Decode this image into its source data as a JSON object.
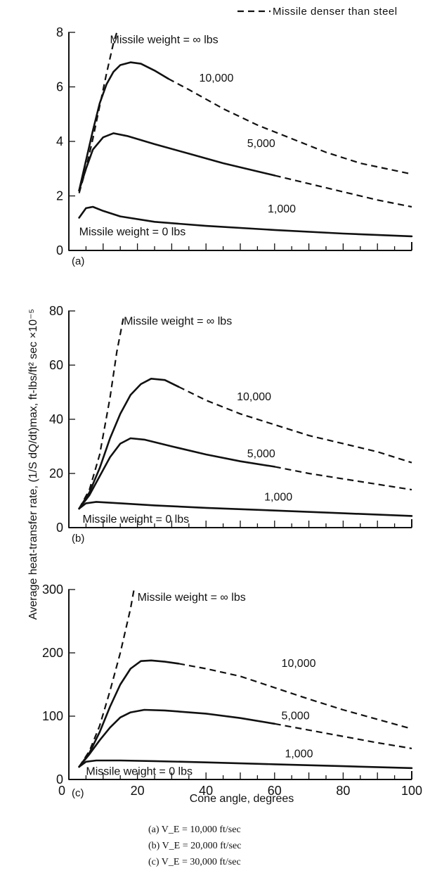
{
  "legend": {
    "dashed_label": "Missile denser than steel"
  },
  "ylabel": "Average heat-transfer rate, (1/S dQ/dt)max, ft-lbs/ft² sec ×10⁻⁵",
  "xlabel": "Cone angle, degrees",
  "captions": [
    "(a)  V_E = 10,000 ft/sec",
    "(b)  V_E = 20,000 ft/sec",
    "(c)  V_E = 30,000 ft/sec"
  ],
  "chart_data": [
    {
      "type": "line",
      "panel": "(a)",
      "xlim": [
        0,
        100
      ],
      "ylim": [
        0,
        8
      ],
      "yticks": [
        "0",
        "2",
        "4",
        "6",
        "8"
      ],
      "xticks": [],
      "series": [
        {
          "name": "Missile weight = ∞ lbs",
          "label_x": 12,
          "label_y": 7.6,
          "segments": [
            {
              "style": "dashed",
              "points": [
                [
                  3,
                  2.1
                ],
                [
                  5,
                  3.0
                ],
                [
                  7,
                  4.1
                ],
                [
                  9,
                  5.3
                ],
                [
                  11,
                  6.5
                ],
                [
                  13,
                  7.6
                ],
                [
                  14,
                  8.0
                ]
              ]
            }
          ]
        },
        {
          "name": "10,000",
          "label_x": 38,
          "label_y": 6.2,
          "segments": [
            {
              "style": "solid",
              "points": [
                [
                  3,
                  2.2
                ],
                [
                  5,
                  3.3
                ],
                [
                  7,
                  4.4
                ],
                [
                  9,
                  5.4
                ],
                [
                  11,
                  6.1
                ],
                [
                  13,
                  6.55
                ],
                [
                  15,
                  6.8
                ],
                [
                  18,
                  6.9
                ],
                [
                  21,
                  6.85
                ],
                [
                  25,
                  6.6
                ],
                [
                  29,
                  6.3
                ]
              ]
            },
            {
              "style": "dashed",
              "points": [
                [
                  29,
                  6.3
                ],
                [
                  35,
                  5.9
                ],
                [
                  45,
                  5.2
                ],
                [
                  55,
                  4.6
                ],
                [
                  65,
                  4.1
                ],
                [
                  75,
                  3.6
                ],
                [
                  85,
                  3.2
                ],
                [
                  100,
                  2.8
                ]
              ]
            }
          ]
        },
        {
          "name": "5,000",
          "label_x": 52,
          "label_y": 3.8,
          "segments": [
            {
              "style": "solid",
              "points": [
                [
                  3,
                  2.2
                ],
                [
                  5,
                  3.0
                ],
                [
                  7,
                  3.7
                ],
                [
                  10,
                  4.15
                ],
                [
                  13,
                  4.3
                ],
                [
                  17,
                  4.2
                ],
                [
                  25,
                  3.9
                ],
                [
                  35,
                  3.55
                ],
                [
                  45,
                  3.2
                ],
                [
                  55,
                  2.9
                ],
                [
                  60,
                  2.75
                ]
              ]
            },
            {
              "style": "dashed",
              "points": [
                [
                  60,
                  2.75
                ],
                [
                  70,
                  2.45
                ],
                [
                  80,
                  2.15
                ],
                [
                  90,
                  1.85
                ],
                [
                  100,
                  1.6
                ]
              ]
            }
          ]
        },
        {
          "name": "1,000",
          "label_x": 58,
          "label_y": 1.4,
          "segments": [
            {
              "style": "solid",
              "points": [
                [
                  3,
                  1.2
                ],
                [
                  5,
                  1.55
                ],
                [
                  7,
                  1.6
                ],
                [
                  10,
                  1.45
                ],
                [
                  15,
                  1.25
                ],
                [
                  25,
                  1.05
                ],
                [
                  40,
                  0.9
                ],
                [
                  60,
                  0.75
                ],
                [
                  80,
                  0.62
                ],
                [
                  100,
                  0.52
                ]
              ]
            }
          ]
        },
        {
          "name": "Missile weight = 0 lbs",
          "label_x": 3,
          "label_y": 0.55,
          "segments": []
        }
      ]
    },
    {
      "type": "line",
      "panel": "(b)",
      "xlim": [
        0,
        100
      ],
      "ylim": [
        0,
        80
      ],
      "yticks": [
        "0",
        "20",
        "40",
        "60",
        "80"
      ],
      "xticks": [],
      "series": [
        {
          "name": "Missile weight = ∞ lbs",
          "label_x": 16,
          "label_y": 75,
          "segments": [
            {
              "style": "dashed",
              "points": [
                [
                  3,
                  7
                ],
                [
                  6,
                  14
                ],
                [
                  9,
                  27
                ],
                [
                  12,
                  48
                ],
                [
                  14,
                  65
                ],
                [
                  16,
                  78
                ]
              ]
            }
          ]
        },
        {
          "name": "10,000",
          "label_x": 49,
          "label_y": 47,
          "segments": [
            {
              "style": "solid",
              "points": [
                [
                  3,
                  7
                ],
                [
                  6,
                  13
                ],
                [
                  9,
                  22
                ],
                [
                  12,
                  33
                ],
                [
                  15,
                  42
                ],
                [
                  18,
                  49
                ],
                [
                  21,
                  53
                ],
                [
                  24,
                  55
                ],
                [
                  28,
                  54.5
                ],
                [
                  32,
                  52
                ]
              ]
            },
            {
              "style": "dashed",
              "points": [
                [
                  32,
                  52
                ],
                [
                  40,
                  47
                ],
                [
                  50,
                  42
                ],
                [
                  60,
                  38
                ],
                [
                  70,
                  34
                ],
                [
                  80,
                  31
                ],
                [
                  90,
                  28
                ],
                [
                  100,
                  24
                ]
              ]
            }
          ]
        },
        {
          "name": "5,000",
          "label_x": 52,
          "label_y": 26,
          "segments": [
            {
              "style": "solid",
              "points": [
                [
                  3,
                  7
                ],
                [
                  6,
                  12
                ],
                [
                  9,
                  19
                ],
                [
                  12,
                  26
                ],
                [
                  15,
                  31
                ],
                [
                  18,
                  33
                ],
                [
                  22,
                  32.5
                ],
                [
                  30,
                  30
                ],
                [
                  40,
                  27
                ],
                [
                  50,
                  24.5
                ],
                [
                  60,
                  22.5
                ]
              ]
            },
            {
              "style": "dashed",
              "points": [
                [
                  60,
                  22.5
                ],
                [
                  70,
                  20
                ],
                [
                  80,
                  18
                ],
                [
                  90,
                  16
                ],
                [
                  100,
                  14
                ]
              ]
            }
          ]
        },
        {
          "name": "1,000",
          "label_x": 57,
          "label_y": 10,
          "segments": [
            {
              "style": "solid",
              "points": [
                [
                  3,
                  7
                ],
                [
                  5,
                  9
                ],
                [
                  8,
                  9.5
                ],
                [
                  15,
                  9
                ],
                [
                  25,
                  8.2
                ],
                [
                  40,
                  7.3
                ],
                [
                  60,
                  6.3
                ],
                [
                  80,
                  5.3
                ],
                [
                  100,
                  4.3
                ]
              ]
            }
          ]
        },
        {
          "name": "Missile weight = 0 lbs",
          "label_x": 4,
          "label_y": 1.8,
          "segments": []
        }
      ]
    },
    {
      "type": "line",
      "panel": "(c)",
      "xlim": [
        0,
        100
      ],
      "ylim": [
        0,
        300
      ],
      "yticks": [
        "0",
        "100",
        "200",
        "300"
      ],
      "xticks": [
        "0",
        "20",
        "40",
        "60",
        "80",
        "100"
      ],
      "series": [
        {
          "name": "Missile weight = ∞ lbs",
          "label_x": 20,
          "label_y": 282,
          "segments": [
            {
              "style": "dashed",
              "points": [
                [
                  3,
                  20
                ],
                [
                  6,
                  45
                ],
                [
                  9,
                  85
                ],
                [
                  12,
                  140
                ],
                [
                  15,
                  200
                ],
                [
                  18,
                  270
                ],
                [
                  19,
                  300
                ]
              ]
            }
          ]
        },
        {
          "name": "10,000",
          "label_x": 62,
          "label_y": 178,
          "segments": [
            {
              "style": "solid",
              "points": [
                [
                  3,
                  20
                ],
                [
                  6,
                  42
                ],
                [
                  9,
                  75
                ],
                [
                  12,
                  115
                ],
                [
                  15,
                  150
                ],
                [
                  18,
                  175
                ],
                [
                  21,
                  187
                ],
                [
                  24,
                  188
                ],
                [
                  28,
                  186
                ],
                [
                  32,
                  183
                ]
              ]
            },
            {
              "style": "dashed",
              "points": [
                [
                  32,
                  183
                ],
                [
                  40,
                  175
                ],
                [
                  50,
                  163
                ],
                [
                  60,
                  145
                ],
                [
                  70,
                  127
                ],
                [
                  80,
                  110
                ],
                [
                  90,
                  95
                ],
                [
                  100,
                  80
                ]
              ]
            }
          ]
        },
        {
          "name": "5,000",
          "label_x": 62,
          "label_y": 95,
          "segments": [
            {
              "style": "solid",
              "points": [
                [
                  3,
                  20
                ],
                [
                  6,
                  40
                ],
                [
                  9,
                  62
                ],
                [
                  12,
                  82
                ],
                [
                  15,
                  98
                ],
                [
                  18,
                  106
                ],
                [
                  22,
                  110
                ],
                [
                  28,
                  109
                ],
                [
                  40,
                  104
                ],
                [
                  50,
                  97
                ],
                [
                  60,
                  88
                ]
              ]
            },
            {
              "style": "dashed",
              "points": [
                [
                  60,
                  88
                ],
                [
                  70,
                  78
                ],
                [
                  80,
                  68
                ],
                [
                  90,
                  58
                ],
                [
                  100,
                  49
                ]
              ]
            }
          ]
        },
        {
          "name": "1,000",
          "label_x": 63,
          "label_y": 35,
          "segments": [
            {
              "style": "solid",
              "points": [
                [
                  3,
                  20
                ],
                [
                  5,
                  28
                ],
                [
                  8,
                  30
                ],
                [
                  15,
                  30
                ],
                [
                  25,
                  29
                ],
                [
                  40,
                  27
                ],
                [
                  60,
                  24
                ],
                [
                  80,
                  21
                ],
                [
                  100,
                  18
                ]
              ]
            }
          ]
        },
        {
          "name": "Missile weight = 0 lbs",
          "label_x": 5,
          "label_y": 7,
          "segments": []
        }
      ]
    }
  ]
}
